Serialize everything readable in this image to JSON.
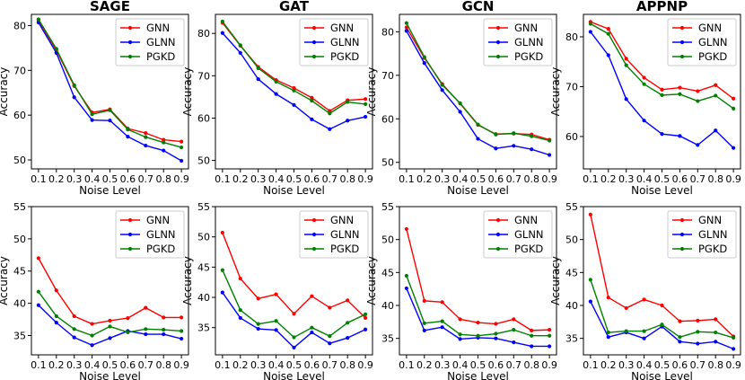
{
  "figure": {
    "legend_labels": [
      "GNN",
      "GLNN",
      "PGKD"
    ],
    "colors": {
      "GNN": "#ff0000",
      "GLNN": "#0000ff",
      "PGKD": "#008000"
    }
  },
  "chart_data": [
    {
      "type": "line",
      "title": "SAGE",
      "xlabel": "Noise Level",
      "ylabel": "Accuracy",
      "x": [
        0.1,
        0.2,
        0.3,
        0.4,
        0.5,
        0.6,
        0.7,
        0.8,
        0.9
      ],
      "x_ticks": [
        "0.1",
        "0.2",
        "0.3",
        "0.4",
        "0.5",
        "0.6",
        "0.7",
        "0.8",
        "0.9"
      ],
      "ylim": [
        48,
        82.5
      ],
      "y_ticks": [
        50,
        60,
        70,
        80
      ],
      "legend": "top-right",
      "series": [
        {
          "name": "GNN",
          "values": [
            81.2,
            74.5,
            66.5,
            60.6,
            61.3,
            57.0,
            56.0,
            54.5,
            54.1
          ]
        },
        {
          "name": "GLNN",
          "values": [
            80.7,
            73.9,
            64.0,
            58.9,
            58.8,
            55.2,
            53.2,
            52.1,
            49.8
          ]
        },
        {
          "name": "PGKD",
          "values": [
            81.4,
            74.8,
            66.7,
            60.2,
            61.1,
            56.8,
            55.1,
            53.9,
            52.8
          ]
        }
      ]
    },
    {
      "type": "line",
      "title": "GAT",
      "xlabel": "Noise Level",
      "ylabel": "Accuracy",
      "x": [
        0.1,
        0.2,
        0.3,
        0.4,
        0.5,
        0.6,
        0.7,
        0.8,
        0.9
      ],
      "x_ticks": [
        "0.1",
        "0.2",
        "0.3",
        "0.4",
        "0.5",
        "0.6",
        "0.7",
        "0.8",
        "0.9"
      ],
      "ylim": [
        48,
        84.5
      ],
      "y_ticks": [
        50,
        60,
        70,
        80
      ],
      "legend": "top-right",
      "series": [
        {
          "name": "GNN",
          "values": [
            82.5,
            77.1,
            72.1,
            69.0,
            67.1,
            64.8,
            61.7,
            64.2,
            64.5
          ]
        },
        {
          "name": "GLNN",
          "values": [
            80.1,
            75.4,
            69.2,
            65.7,
            63.1,
            59.7,
            57.4,
            59.4,
            60.3
          ]
        },
        {
          "name": "PGKD",
          "values": [
            82.8,
            77.2,
            71.8,
            68.6,
            66.5,
            64.1,
            61.1,
            63.8,
            63.3
          ]
        }
      ]
    },
    {
      "type": "line",
      "title": "GCN",
      "xlabel": "Noise Level",
      "ylabel": "Accuracy",
      "x": [
        0.1,
        0.2,
        0.3,
        0.4,
        0.5,
        0.6,
        0.7,
        0.8,
        0.9
      ],
      "x_ticks": [
        "0.1",
        "0.2",
        "0.3",
        "0.4",
        "0.5",
        "0.6",
        "0.7",
        "0.8",
        "0.9"
      ],
      "ylim": [
        48.5,
        84
      ],
      "y_ticks": [
        50,
        60,
        70,
        80
      ],
      "legend": "top-right",
      "series": [
        {
          "name": "GNN",
          "values": [
            81.0,
            74.0,
            68.0,
            63.5,
            58.6,
            56.5,
            56.6,
            56.4,
            55.2
          ]
        },
        {
          "name": "GLNN",
          "values": [
            80.2,
            72.8,
            66.6,
            61.6,
            55.4,
            53.2,
            53.8,
            53.0,
            51.7
          ]
        },
        {
          "name": "PGKD",
          "values": [
            82.0,
            74.2,
            67.8,
            63.6,
            58.7,
            56.4,
            56.7,
            56.0,
            55.0
          ]
        }
      ]
    },
    {
      "type": "line",
      "title": "APPNP",
      "xlabel": "Noise Level",
      "ylabel": "Accuracy",
      "x": [
        0.1,
        0.2,
        0.3,
        0.4,
        0.5,
        0.6,
        0.7,
        0.8,
        0.9
      ],
      "x_ticks": [
        "0.1",
        "0.2",
        "0.3",
        "0.4",
        "0.5",
        "0.6",
        "0.7",
        "0.8",
        "0.9"
      ],
      "ylim": [
        53.5,
        84.5
      ],
      "y_ticks": [
        60,
        70,
        80
      ],
      "legend": "top-right",
      "series": [
        {
          "name": "GNN",
          "values": [
            83.0,
            81.6,
            75.6,
            71.8,
            69.4,
            69.8,
            69.1,
            70.3,
            67.6
          ]
        },
        {
          "name": "GLNN",
          "values": [
            81.0,
            76.3,
            67.5,
            63.2,
            60.5,
            60.1,
            58.3,
            61.2,
            57.7
          ]
        },
        {
          "name": "PGKD",
          "values": [
            82.6,
            80.6,
            74.3,
            70.5,
            68.3,
            68.5,
            67.1,
            68.2,
            65.6
          ]
        }
      ]
    },
    {
      "type": "line",
      "title": "",
      "xlabel": "Noise Level",
      "ylabel": "Accuracy",
      "x": [
        0.1,
        0.2,
        0.3,
        0.4,
        0.5,
        0.6,
        0.7,
        0.8,
        0.9
      ],
      "x_ticks": [
        "0.1",
        "0.2",
        "0.3",
        "0.4",
        "0.5",
        "0.6",
        "0.7",
        "0.8",
        "0.9"
      ],
      "ylim": [
        32,
        55
      ],
      "y_ticks": [
        35,
        40,
        45,
        50,
        55
      ],
      "legend": "top-right",
      "series": [
        {
          "name": "GNN",
          "values": [
            47.0,
            42.0,
            38.0,
            36.8,
            37.3,
            37.7,
            39.3,
            37.8,
            37.8
          ]
        },
        {
          "name": "GLNN",
          "values": [
            39.7,
            37.0,
            34.7,
            33.5,
            34.6,
            35.7,
            35.2,
            35.2,
            34.5
          ]
        },
        {
          "name": "PGKD",
          "values": [
            41.8,
            38.0,
            36.0,
            35.0,
            36.4,
            35.5,
            36.0,
            35.9,
            35.7
          ]
        }
      ]
    },
    {
      "type": "line",
      "title": "",
      "xlabel": "Noise Level",
      "ylabel": "Accuracy",
      "x": [
        0.1,
        0.2,
        0.3,
        0.4,
        0.5,
        0.6,
        0.7,
        0.8,
        0.9
      ],
      "x_ticks": [
        "0.1",
        "0.2",
        "0.3",
        "0.4",
        "0.5",
        "0.6",
        "0.7",
        "0.8",
        "0.9"
      ],
      "ylim": [
        30.5,
        55
      ],
      "y_ticks": [
        35,
        40,
        45,
        50,
        55
      ],
      "legend": "top-right",
      "series": [
        {
          "name": "GNN",
          "values": [
            50.7,
            43.1,
            39.8,
            40.5,
            37.3,
            40.2,
            38.3,
            39.5,
            36.6
          ]
        },
        {
          "name": "GLNN",
          "values": [
            40.8,
            36.6,
            34.8,
            34.6,
            31.7,
            34.2,
            32.4,
            33.3,
            34.7
          ]
        },
        {
          "name": "PGKD",
          "values": [
            44.5,
            37.9,
            35.6,
            36.1,
            33.4,
            35.0,
            33.6,
            35.8,
            37.2
          ]
        }
      ]
    },
    {
      "type": "line",
      "title": "",
      "xlabel": "Noise Level",
      "ylabel": "Accuracy",
      "x": [
        0.1,
        0.2,
        0.3,
        0.4,
        0.5,
        0.6,
        0.7,
        0.8,
        0.9
      ],
      "x_ticks": [
        "0.1",
        "0.2",
        "0.3",
        "0.4",
        "0.5",
        "0.6",
        "0.7",
        "0.8",
        "0.9"
      ],
      "ylim": [
        32.5,
        55
      ],
      "y_ticks": [
        35,
        40,
        45,
        50,
        55
      ],
      "legend": "top-right",
      "series": [
        {
          "name": "GNN",
          "values": [
            51.6,
            40.7,
            40.5,
            37.9,
            37.4,
            37.2,
            37.9,
            36.2,
            36.3
          ]
        },
        {
          "name": "GLNN",
          "values": [
            42.6,
            36.2,
            36.7,
            34.9,
            35.1,
            35.0,
            34.4,
            33.8,
            33.8
          ]
        },
        {
          "name": "PGKD",
          "values": [
            44.5,
            37.3,
            37.6,
            35.6,
            35.4,
            35.7,
            36.3,
            35.4,
            35.4
          ]
        }
      ]
    },
    {
      "type": "line",
      "title": "",
      "xlabel": "Noise Level",
      "ylabel": "Accuracy",
      "x": [
        0.1,
        0.2,
        0.3,
        0.4,
        0.5,
        0.6,
        0.7,
        0.8,
        0.9
      ],
      "x_ticks": [
        "0.1",
        "0.2",
        "0.3",
        "0.4",
        "0.5",
        "0.6",
        "0.7",
        "0.8",
        "0.9"
      ],
      "ylim": [
        32.5,
        55
      ],
      "y_ticks": [
        35,
        40,
        45,
        50,
        55
      ],
      "legend": "top-right",
      "series": [
        {
          "name": "GNN",
          "values": [
            53.8,
            41.2,
            39.6,
            40.9,
            40.0,
            37.6,
            37.7,
            37.9,
            35.3
          ]
        },
        {
          "name": "GLNN",
          "values": [
            40.6,
            35.2,
            35.9,
            35.0,
            36.8,
            34.5,
            34.2,
            34.5,
            33.4
          ]
        },
        {
          "name": "PGKD",
          "values": [
            43.9,
            35.9,
            36.1,
            36.1,
            37.1,
            35.2,
            36.0,
            35.9,
            35.1
          ]
        }
      ]
    }
  ]
}
